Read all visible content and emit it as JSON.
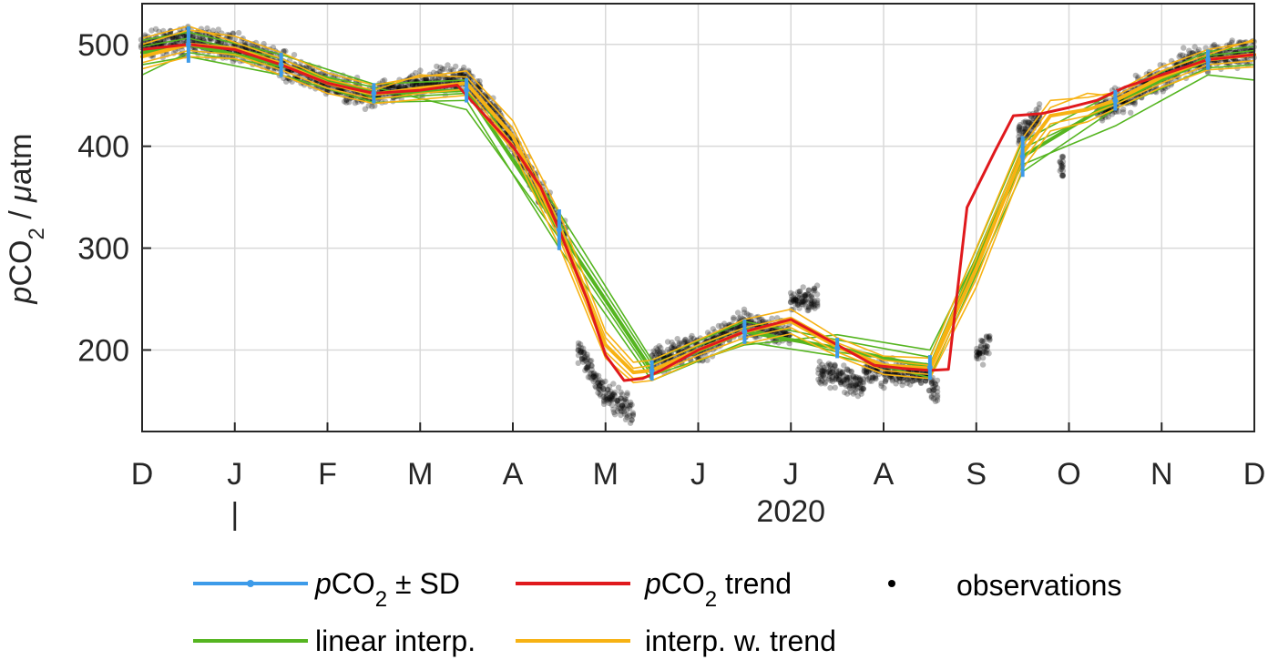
{
  "chart_data": {
    "type": "line",
    "ylabel": {
      "italic": "p",
      "base": "CO",
      "sub": "2",
      "rest": " / ",
      "unit_italic": "μ",
      "unit": "atm"
    },
    "ylim": [
      120,
      540
    ],
    "yticks": [
      200,
      300,
      400,
      500
    ],
    "xlim": [
      0,
      12
    ],
    "xticks": [
      {
        "pos": 0,
        "label": "D"
      },
      {
        "pos": 1,
        "label": "J"
      },
      {
        "pos": 2,
        "label": "F"
      },
      {
        "pos": 3,
        "label": "M"
      },
      {
        "pos": 4,
        "label": "A"
      },
      {
        "pos": 5,
        "label": "M"
      },
      {
        "pos": 6,
        "label": "J"
      },
      {
        "pos": 7,
        "label": "J"
      },
      {
        "pos": 8,
        "label": "A"
      },
      {
        "pos": 9,
        "label": "S"
      },
      {
        "pos": 10,
        "label": "O"
      },
      {
        "pos": 11,
        "label": "N"
      },
      {
        "pos": 12,
        "label": "D"
      }
    ],
    "year_label": "2020",
    "year_marker": "|",
    "grid": true,
    "colors": {
      "sd": "#3d9be9",
      "trend": "#e0191d",
      "linear": "#55b520",
      "interp": "#f7b213",
      "obs": "#000000",
      "axis": "#262626",
      "grid": "#d9d9d9"
    },
    "monthly_means": {
      "x": [
        0.5,
        1.5,
        2.5,
        3.5,
        4.5,
        5.5,
        6.5,
        7.5,
        8.5,
        9.5,
        10.5,
        11.5
      ],
      "y": [
        500,
        480,
        452,
        455,
        318,
        180,
        218,
        202,
        183,
        390,
        445,
        485
      ],
      "sd": [
        18,
        12,
        10,
        12,
        20,
        10,
        12,
        10,
        12,
        20,
        10,
        10
      ]
    },
    "trend": {
      "x": [
        0.0,
        0.5,
        1.0,
        1.5,
        2.0,
        2.5,
        3.0,
        3.4,
        3.6,
        4.0,
        4.3,
        4.5,
        4.8,
        5.0,
        5.2,
        5.4,
        5.6,
        6.0,
        6.5,
        7.0,
        7.3,
        7.6,
        7.9,
        8.2,
        8.5,
        8.7,
        8.9,
        9.2,
        9.4,
        9.7,
        10.0,
        10.3,
        10.6,
        11.0,
        11.5,
        12.0
      ],
      "y": [
        495,
        500,
        495,
        480,
        462,
        452,
        455,
        460,
        440,
        400,
        360,
        318,
        250,
        195,
        170,
        172,
        180,
        200,
        218,
        230,
        215,
        200,
        185,
        182,
        180,
        181,
        340,
        395,
        430,
        432,
        438,
        445,
        458,
        470,
        485,
        490
      ]
    },
    "linear_interp": [
      {
        "x": [
          0,
          0.5,
          1.5,
          2.5,
          3.5,
          4.5,
          5.5,
          6.5,
          7.5,
          8.5,
          9.5,
          10.5,
          11.5,
          12
        ],
        "y": [
          492,
          500,
          480,
          452,
          455,
          318,
          180,
          218,
          202,
          183,
          390,
          445,
          485,
          490
        ]
      },
      {
        "x": [
          0,
          0.5,
          1.5,
          2.5,
          3.5,
          4.5,
          5.5,
          6.5,
          7.5,
          8.5,
          9.5,
          10.5,
          11.5,
          12
        ],
        "y": [
          504,
          512,
          490,
          461,
          465,
          335,
          190,
          228,
          210,
          193,
          405,
          453,
          493,
          498
        ]
      },
      {
        "x": [
          0,
          0.5,
          1.5,
          2.5,
          3.5,
          4.5,
          5.5,
          6.5,
          7.5,
          8.5,
          9.5,
          10.5,
          11.5,
          12
        ],
        "y": [
          480,
          488,
          470,
          443,
          445,
          300,
          170,
          208,
          194,
          173,
          375,
          437,
          477,
          480
        ]
      },
      {
        "x": [
          0,
          0.5,
          1.5,
          2.5,
          3.5,
          4.5,
          5.5,
          6.5,
          7.5,
          8.5,
          9.5,
          10.5,
          11.5,
          12
        ],
        "y": [
          470,
          492,
          478,
          458,
          436,
          310,
          175,
          205,
          215,
          200,
          382,
          420,
          470,
          465
        ]
      },
      {
        "x": [
          0,
          0.5,
          1.5,
          2.5,
          3.5,
          4.5,
          5.5,
          6.5,
          7.5,
          8.5,
          9.5,
          10.5,
          11.5,
          12
        ],
        "y": [
          498,
          506,
          486,
          447,
          452,
          326,
          186,
          222,
          198,
          186,
          398,
          441,
          489,
          494
        ]
      }
    ],
    "interp_trend": [
      {
        "x": [
          0,
          0.5,
          1.0,
          1.5,
          2.0,
          2.5,
          3.0,
          3.5,
          4.0,
          4.5,
          5.0,
          5.3,
          5.5,
          6.0,
          6.5,
          7.0,
          7.5,
          8.0,
          8.5,
          9.0,
          9.5,
          9.8,
          10.2,
          10.5,
          11.0,
          11.5,
          12
        ],
        "y": [
          488,
          500,
          496,
          481,
          462,
          451,
          457,
          462,
          410,
          318,
          205,
          178,
          180,
          200,
          218,
          228,
          203,
          185,
          182,
          280,
          393,
          430,
          436,
          445,
          468,
          485,
          490
        ]
      },
      {
        "x": [
          0,
          0.5,
          1.0,
          1.5,
          2.0,
          2.5,
          3.0,
          3.5,
          4.0,
          4.5,
          5.0,
          5.3,
          5.5,
          6.0,
          6.5,
          7.0,
          7.5,
          8.0,
          8.5,
          9.0,
          9.5,
          9.8,
          10.2,
          10.5,
          11.0,
          11.5,
          12
        ],
        "y": [
          500,
          514,
          508,
          492,
          472,
          460,
          468,
          474,
          425,
          335,
          218,
          188,
          190,
          210,
          230,
          240,
          212,
          194,
          192,
          300,
          408,
          445,
          448,
          453,
          478,
          495,
          503
        ]
      },
      {
        "x": [
          0,
          0.5,
          1.0,
          1.5,
          2.0,
          2.5,
          3.0,
          3.5,
          4.0,
          4.5,
          5.0,
          5.3,
          5.5,
          6.0,
          6.5,
          7.0,
          7.5,
          8.0,
          8.5,
          9.0,
          9.5,
          9.8,
          10.2,
          10.5,
          11.0,
          11.5,
          12
        ],
        "y": [
          476,
          488,
          486,
          470,
          452,
          442,
          446,
          450,
          396,
          302,
          192,
          168,
          170,
          190,
          206,
          216,
          194,
          176,
          172,
          262,
          378,
          415,
          424,
          437,
          458,
          475,
          478
        ]
      },
      {
        "x": [
          0,
          0.5,
          1.0,
          1.5,
          2.0,
          2.5,
          3.0,
          3.5,
          4.0,
          4.5,
          5.0,
          5.3,
          5.5,
          6.0,
          6.5,
          7.0,
          7.5,
          8.0,
          8.5,
          9.0,
          9.5,
          9.8,
          10.2,
          10.5,
          11.0,
          11.5,
          12
        ],
        "y": [
          506,
          518,
          502,
          486,
          466,
          455,
          470,
          468,
          418,
          325,
          212,
          182,
          185,
          205,
          222,
          232,
          207,
          190,
          185,
          290,
          400,
          438,
          452,
          449,
          474,
          490,
          505
        ]
      },
      {
        "x": [
          0,
          0.5,
          1.0,
          1.5,
          2.0,
          2.5,
          3.0,
          3.5,
          4.0,
          4.5,
          5.0,
          5.3,
          5.5,
          6.0,
          6.5,
          7.0,
          7.5,
          8.0,
          8.5,
          9.0,
          9.5,
          9.8,
          10.2,
          10.5,
          11.0,
          11.5,
          12
        ],
        "y": [
          482,
          494,
          490,
          475,
          457,
          446,
          452,
          456,
          402,
          310,
          198,
          172,
          175,
          195,
          212,
          222,
          198,
          180,
          176,
          270,
          385,
          422,
          430,
          441,
          462,
          480,
          484
        ]
      }
    ],
    "observations": {
      "segments": [
        {
          "x0": 0.0,
          "x1": 0.5,
          "y0": 498,
          "y1": 505
        },
        {
          "x0": 0.5,
          "x1": 1.0,
          "y0": 505,
          "y1": 498
        },
        {
          "x0": 1.0,
          "x1": 1.5,
          "y0": 498,
          "y1": 480
        },
        {
          "x0": 1.5,
          "x1": 2.0,
          "y0": 480,
          "y1": 460
        },
        {
          "x0": 2.0,
          "x1": 2.5,
          "y0": 460,
          "y1": 450
        },
        {
          "x0": 2.5,
          "x1": 3.0,
          "y0": 450,
          "y1": 462
        },
        {
          "x0": 3.0,
          "x1": 3.5,
          "y0": 462,
          "y1": 468
        },
        {
          "x0": 3.5,
          "x1": 3.9,
          "y0": 468,
          "y1": 420
        },
        {
          "x0": 3.9,
          "x1": 4.3,
          "y0": 420,
          "y1": 355
        },
        {
          "x0": 4.3,
          "x1": 4.6,
          "y0": 355,
          "y1": 310
        },
        {
          "x0": 4.7,
          "x1": 5.0,
          "y0": 200,
          "y1": 155
        },
        {
          "x0": 5.0,
          "x1": 5.3,
          "y0": 155,
          "y1": 140
        },
        {
          "x0": 5.5,
          "x1": 6.0,
          "y0": 190,
          "y1": 205
        },
        {
          "x0": 6.0,
          "x1": 6.5,
          "y0": 195,
          "y1": 230
        },
        {
          "x0": 6.5,
          "x1": 7.0,
          "y0": 225,
          "y1": 215
        },
        {
          "x0": 7.0,
          "x1": 7.3,
          "y0": 250,
          "y1": 250
        },
        {
          "x0": 7.3,
          "x1": 7.8,
          "y0": 180,
          "y1": 165
        },
        {
          "x0": 7.8,
          "x1": 8.5,
          "y0": 180,
          "y1": 175
        },
        {
          "x0": 8.5,
          "x1": 8.6,
          "y0": 165,
          "y1": 155
        },
        {
          "x0": 9.0,
          "x1": 9.15,
          "y0": 190,
          "y1": 210
        },
        {
          "x0": 9.45,
          "x1": 9.7,
          "y0": 410,
          "y1": 430
        },
        {
          "x0": 9.9,
          "x1": 9.95,
          "y0": 380,
          "y1": 385
        },
        {
          "x0": 10.3,
          "x1": 10.7,
          "y0": 435,
          "y1": 450
        },
        {
          "x0": 10.7,
          "x1": 11.2,
          "y0": 455,
          "y1": 475
        },
        {
          "x0": 11.2,
          "x1": 12.0,
          "y0": 480,
          "y1": 495
        }
      ]
    }
  },
  "legend": {
    "items": [
      {
        "id": "sd",
        "label_italic": "p",
        "label_base": "CO",
        "label_sub": "2",
        "label_rest": " ± SD"
      },
      {
        "id": "trend",
        "label_italic": "p",
        "label_base": "CO",
        "label_sub": "2",
        "label_rest": " trend"
      },
      {
        "id": "obs",
        "label": "observations"
      },
      {
        "id": "linear",
        "label": "linear interp."
      },
      {
        "id": "interp",
        "label": "interp. w. trend"
      }
    ]
  }
}
